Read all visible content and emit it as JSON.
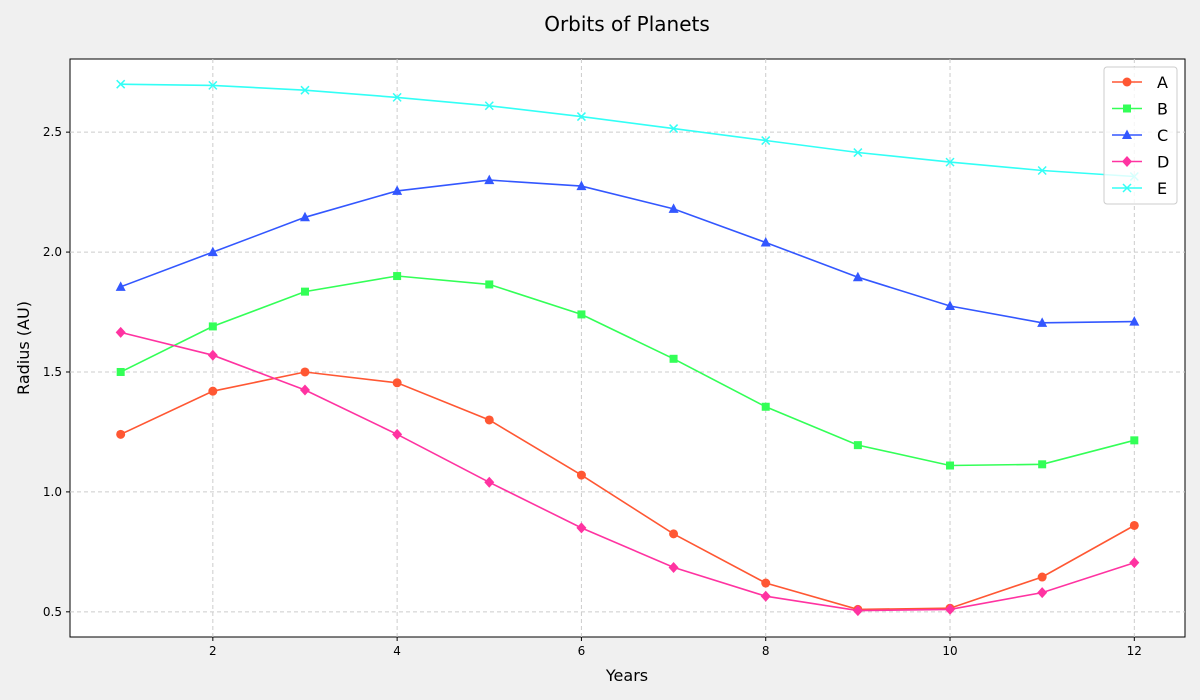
{
  "chart_data": {
    "type": "line",
    "title": "Orbits of Planets",
    "xlabel": "Years",
    "ylabel": "Radius (AU)",
    "x": [
      1,
      2,
      3,
      4,
      5,
      6,
      7,
      8,
      9,
      10,
      11,
      12
    ],
    "xlim": [
      0.45,
      12.55
    ],
    "ylim": [
      0.395,
      2.805
    ],
    "xticks": [
      2,
      4,
      6,
      8,
      10,
      12
    ],
    "xtick_labels": [
      "2",
      "4",
      "6",
      "8",
      "10",
      "12"
    ],
    "yticks": [
      0.5,
      1.0,
      1.5,
      2.0,
      2.5
    ],
    "ytick_labels": [
      "0.5",
      "1.0",
      "1.5",
      "2.0",
      "2.5"
    ],
    "grid": true,
    "legend_position": "top-right",
    "series": [
      {
        "name": "A",
        "color": "#ff5733",
        "marker": "circle",
        "values": [
          1.24,
          1.42,
          1.5,
          1.455,
          1.3,
          1.07,
          0.825,
          0.62,
          0.51,
          0.515,
          0.645,
          0.86
        ]
      },
      {
        "name": "B",
        "color": "#33ff57",
        "marker": "square",
        "values": [
          1.5,
          1.69,
          1.835,
          1.9,
          1.865,
          1.74,
          1.555,
          1.355,
          1.195,
          1.11,
          1.115,
          1.215
        ]
      },
      {
        "name": "C",
        "color": "#3357ff",
        "marker": "triangle",
        "values": [
          1.855,
          2.0,
          2.145,
          2.255,
          2.3,
          2.275,
          2.18,
          2.04,
          1.895,
          1.775,
          1.705,
          1.71
        ]
      },
      {
        "name": "D",
        "color": "#ff33a1",
        "marker": "diamond",
        "values": [
          1.665,
          1.57,
          1.425,
          1.24,
          1.04,
          0.85,
          0.685,
          0.565,
          0.505,
          0.51,
          0.58,
          0.705
        ]
      },
      {
        "name": "E",
        "color": "#33fff6",
        "marker": "x",
        "values": [
          2.7,
          2.695,
          2.675,
          2.645,
          2.61,
          2.565,
          2.515,
          2.465,
          2.415,
          2.375,
          2.34,
          2.315
        ]
      }
    ]
  }
}
